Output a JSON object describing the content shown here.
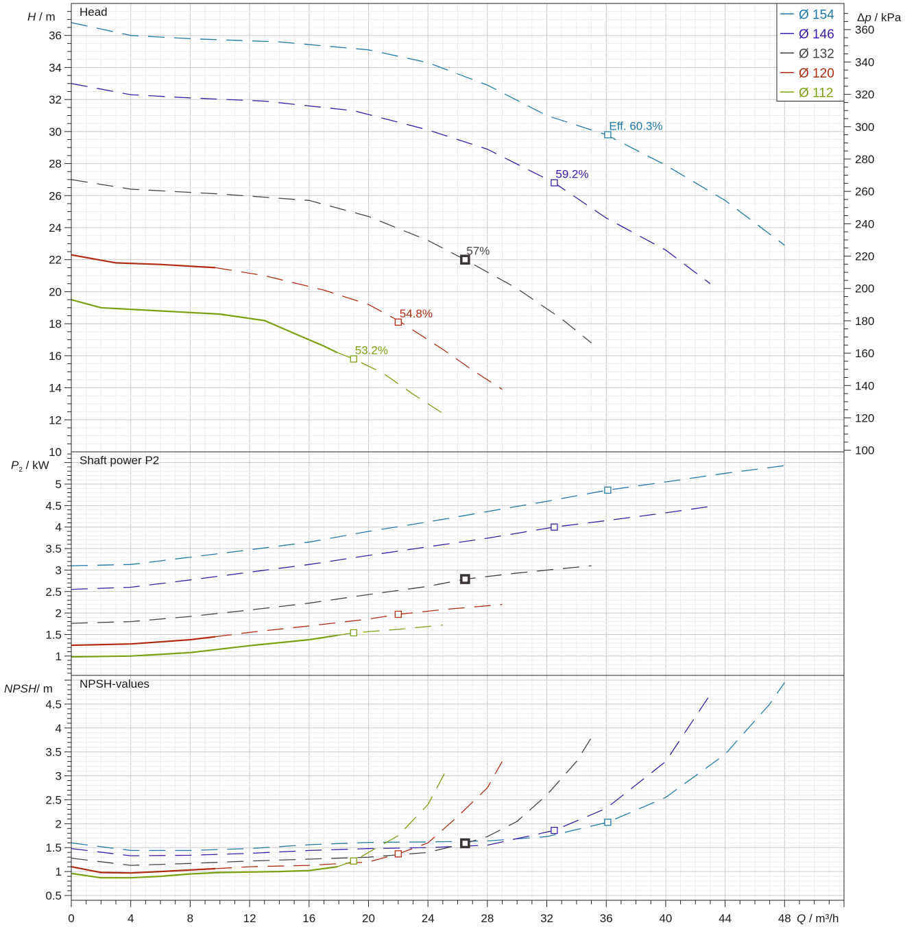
{
  "chart_data": [
    {
      "type": "line",
      "panel": "head",
      "title": "Head",
      "ylabel_main": "H",
      "ylabel_unit": "m",
      "ylim": [
        10,
        38
      ],
      "yticks": [
        10,
        12,
        14,
        16,
        18,
        20,
        22,
        24,
        26,
        28,
        30,
        32,
        34,
        36
      ],
      "secondary_ylabel_main": "Δp",
      "secondary_ylabel_unit": "kPa",
      "secondary_yticks": [
        100,
        120,
        140,
        160,
        180,
        200,
        220,
        240,
        260,
        280,
        300,
        320,
        340,
        360
      ],
      "xlim": [
        0,
        52
      ],
      "series": [
        {
          "name": "Ø 154",
          "color": "#1f78a8",
          "points": [
            [
              0,
              36.8
            ],
            [
              4,
              36.0
            ],
            [
              8,
              35.8
            ],
            [
              14,
              35.6
            ],
            [
              20,
              35.1
            ],
            [
              24,
              34.3
            ],
            [
              28,
              32.9
            ],
            [
              32,
              31.0
            ],
            [
              36,
              29.8
            ],
            [
              40,
              27.9
            ],
            [
              44,
              25.7
            ],
            [
              48,
              22.9
            ]
          ],
          "solid_until": null,
          "marker": {
            "x": 36.1,
            "y": 29.8,
            "label": "Eff.  60.3%"
          }
        },
        {
          "name": "Ø 146",
          "color": "#3a1aa8",
          "points": [
            [
              0,
              33.0
            ],
            [
              4,
              32.3
            ],
            [
              8,
              32.1
            ],
            [
              13,
              31.9
            ],
            [
              19,
              31.3
            ],
            [
              24,
              30.1
            ],
            [
              28,
              28.9
            ],
            [
              32.5,
              26.8
            ],
            [
              36,
              24.6
            ],
            [
              40,
              22.6
            ],
            [
              43,
              20.5
            ]
          ],
          "solid_until": null,
          "marker": {
            "x": 32.5,
            "y": 26.8,
            "label": "59.2%"
          }
        },
        {
          "name": "Ø 132",
          "color": "#444044",
          "points": [
            [
              0,
              27.0
            ],
            [
              4,
              26.4
            ],
            [
              10,
              26.1
            ],
            [
              16,
              25.7
            ],
            [
              20,
              24.7
            ],
            [
              24,
              23.2
            ],
            [
              26.5,
              22.0
            ],
            [
              30,
              20.2
            ],
            [
              33,
              18.3
            ],
            [
              35,
              16.8
            ]
          ],
          "solid_until": null,
          "marker": {
            "x": 26.5,
            "y": 22.0,
            "label": "57%",
            "bold": true
          }
        },
        {
          "name": "Ø 120",
          "color": "#b02a10",
          "points": [
            [
              0,
              22.3
            ],
            [
              3,
              21.8
            ],
            [
              6,
              21.7
            ],
            [
              9.7,
              21.5
            ],
            [
              13,
              21.0
            ],
            [
              17,
              20.1
            ],
            [
              20,
              19.2
            ],
            [
              22,
              18.2
            ],
            [
              25,
              16.4
            ],
            [
              27,
              15.1
            ],
            [
              29,
              13.9
            ]
          ],
          "solid_until": 9.7,
          "marker": {
            "x": 22,
            "y": 18.1,
            "label": "54.8%"
          }
        },
        {
          "name": "Ø 112",
          "color": "#7aa010",
          "points": [
            [
              0,
              19.5
            ],
            [
              2,
              19.0
            ],
            [
              6,
              18.8
            ],
            [
              10,
              18.6
            ],
            [
              13,
              18.2
            ],
            [
              15,
              17.4
            ],
            [
              17,
              16.6
            ],
            [
              17.9,
              16.2
            ],
            [
              19,
              15.8
            ],
            [
              21,
              14.9
            ],
            [
              23,
              13.6
            ],
            [
              25,
              12.4
            ]
          ],
          "solid_until": 17.9,
          "marker": {
            "x": 19,
            "y": 15.8,
            "label": "53.2%"
          }
        }
      ]
    },
    {
      "type": "line",
      "panel": "power",
      "title": "Shaft power P2",
      "ylabel_main": "P",
      "ylabel_sub": "2",
      "ylabel_unit": "kW",
      "ylim": [
        0.55,
        5.75
      ],
      "yticks": [
        1,
        1.5,
        2,
        2.5,
        3,
        3.5,
        4,
        4.5,
        5
      ],
      "ytick_labels": [
        "1",
        "1.5",
        "2",
        "2.5",
        "3",
        "3.5",
        "4",
        "4.5",
        "5"
      ],
      "xlim": [
        0,
        52
      ],
      "series": [
        {
          "name": "Ø 154",
          "points": [
            [
              0,
              3.1
            ],
            [
              4,
              3.13
            ],
            [
              8,
              3.3
            ],
            [
              12,
              3.47
            ],
            [
              16,
              3.65
            ],
            [
              20,
              3.9
            ],
            [
              24,
              4.12
            ],
            [
              28,
              4.36
            ],
            [
              32,
              4.6
            ],
            [
              36.1,
              4.86
            ],
            [
              40,
              5.05
            ],
            [
              44,
              5.25
            ],
            [
              48,
              5.43
            ]
          ],
          "solid_until": null,
          "marker": {
            "x": 36.1,
            "y": 4.86
          }
        },
        {
          "name": "Ø 146",
          "points": [
            [
              0,
              2.55
            ],
            [
              4,
              2.6
            ],
            [
              8,
              2.77
            ],
            [
              12,
              2.95
            ],
            [
              16,
              3.13
            ],
            [
              20,
              3.34
            ],
            [
              24,
              3.54
            ],
            [
              28,
              3.74
            ],
            [
              32.5,
              4.0
            ],
            [
              36,
              4.15
            ],
            [
              40,
              4.33
            ],
            [
              43,
              4.48
            ]
          ],
          "solid_until": null,
          "marker": {
            "x": 32.5,
            "y": 4.0
          }
        },
        {
          "name": "Ø 132",
          "points": [
            [
              0,
              1.76
            ],
            [
              4,
              1.8
            ],
            [
              8,
              1.92
            ],
            [
              12,
              2.07
            ],
            [
              16,
              2.23
            ],
            [
              20,
              2.43
            ],
            [
              24,
              2.62
            ],
            [
              26.5,
              2.79
            ],
            [
              30,
              2.93
            ],
            [
              35,
              3.1
            ]
          ],
          "solid_until": null,
          "marker": {
            "x": 26.5,
            "y": 2.79,
            "bold": true
          }
        },
        {
          "name": "Ø 120",
          "points": [
            [
              0,
              1.25
            ],
            [
              4,
              1.28
            ],
            [
              8,
              1.38
            ],
            [
              9.7,
              1.45
            ],
            [
              12,
              1.55
            ],
            [
              16,
              1.7
            ],
            [
              20,
              1.86
            ],
            [
              22,
              1.97
            ],
            [
              25,
              2.08
            ],
            [
              29,
              2.2
            ]
          ],
          "solid_until": 9.7,
          "marker": {
            "x": 22,
            "y": 1.97
          }
        },
        {
          "name": "Ø 112",
          "points": [
            [
              0,
              0.98
            ],
            [
              4,
              1.0
            ],
            [
              8,
              1.08
            ],
            [
              12,
              1.24
            ],
            [
              16,
              1.38
            ],
            [
              17.9,
              1.48
            ],
            [
              19,
              1.54
            ],
            [
              22,
              1.62
            ],
            [
              25,
              1.72
            ]
          ],
          "solid_until": 17.9,
          "marker": {
            "x": 19,
            "y": 1.54
          }
        }
      ]
    },
    {
      "type": "line",
      "panel": "npsh",
      "title": "NPSH-values",
      "ylabel_main": "NPSH",
      "ylabel_unit": "m",
      "ylim": [
        0.4,
        5.1
      ],
      "yticks": [
        0.5,
        1,
        1.5,
        2,
        2.5,
        3,
        3.5,
        4,
        4.5
      ],
      "ytick_labels": [
        "0.5",
        "1",
        "1.5",
        "2",
        "2.5",
        "3",
        "3.5",
        "4",
        "4.5"
      ],
      "xlabel_main": "Q",
      "xlabel_unit": "m³/h",
      "xlim": [
        0,
        52
      ],
      "xticks": [
        0,
        4,
        8,
        12,
        16,
        20,
        24,
        28,
        32,
        36,
        40,
        44,
        48
      ],
      "xtick_labels": [
        "0",
        "4",
        "8",
        "12",
        "16",
        "20",
        "24",
        "28",
        "32",
        "36",
        "40",
        "44",
        "48"
      ],
      "series": [
        {
          "name": "Ø 154",
          "points": [
            [
              0,
              1.6
            ],
            [
              4,
              1.44
            ],
            [
              8,
              1.44
            ],
            [
              12,
              1.48
            ],
            [
              16,
              1.56
            ],
            [
              20,
              1.61
            ],
            [
              24,
              1.62
            ],
            [
              28,
              1.64
            ],
            [
              32,
              1.73
            ],
            [
              36.1,
              2.03
            ],
            [
              40,
              2.55
            ],
            [
              44,
              3.45
            ],
            [
              47,
              4.5
            ],
            [
              48,
              4.95
            ]
          ],
          "solid_until": null,
          "marker": {
            "x": 36.1,
            "y": 2.03
          }
        },
        {
          "name": "Ø 146",
          "points": [
            [
              0,
              1.48
            ],
            [
              4,
              1.33
            ],
            [
              8,
              1.34
            ],
            [
              12,
              1.38
            ],
            [
              16,
              1.44
            ],
            [
              20,
              1.48
            ],
            [
              24,
              1.5
            ],
            [
              28,
              1.55
            ],
            [
              32.5,
              1.86
            ],
            [
              36,
              2.32
            ],
            [
              40,
              3.3
            ],
            [
              43,
              4.7
            ]
          ],
          "solid_until": null,
          "marker": {
            "x": 32.5,
            "y": 1.86
          }
        },
        {
          "name": "Ø 132",
          "points": [
            [
              0,
              1.28
            ],
            [
              4,
              1.13
            ],
            [
              8,
              1.17
            ],
            [
              12,
              1.22
            ],
            [
              16,
              1.26
            ],
            [
              20,
              1.3
            ],
            [
              24,
              1.4
            ],
            [
              26.5,
              1.59
            ],
            [
              28,
              1.73
            ],
            [
              30,
              2.05
            ],
            [
              32,
              2.6
            ],
            [
              34,
              3.3
            ],
            [
              35,
              3.8
            ]
          ],
          "solid_until": null,
          "marker": {
            "x": 26.5,
            "y": 1.59,
            "bold": true
          }
        },
        {
          "name": "Ø 120",
          "points": [
            [
              0,
              1.1
            ],
            [
              2,
              0.98
            ],
            [
              4,
              0.97
            ],
            [
              6,
              1.0
            ],
            [
              9.7,
              1.06
            ],
            [
              12,
              1.1
            ],
            [
              16,
              1.13
            ],
            [
              20,
              1.2
            ],
            [
              22,
              1.37
            ],
            [
              24,
              1.6
            ],
            [
              26,
              2.15
            ],
            [
              28,
              2.75
            ],
            [
              29,
              3.3
            ]
          ],
          "solid_until": 9.7,
          "marker": {
            "x": 22,
            "y": 1.37
          }
        },
        {
          "name": "Ø 112",
          "points": [
            [
              0,
              0.96
            ],
            [
              2,
              0.87
            ],
            [
              4,
              0.87
            ],
            [
              6,
              0.9
            ],
            [
              8,
              0.95
            ],
            [
              10,
              0.98
            ],
            [
              14,
              1.0
            ],
            [
              16,
              1.02
            ],
            [
              17.9,
              1.1
            ],
            [
              19,
              1.22
            ],
            [
              20,
              1.4
            ],
            [
              22,
              1.75
            ],
            [
              24,
              2.4
            ],
            [
              25.2,
              3.1
            ]
          ],
          "solid_until": 17.9,
          "marker": {
            "x": 19,
            "y": 1.22
          }
        }
      ]
    }
  ],
  "legend": [
    {
      "label": "Ø 154",
      "color": "#1f78a8"
    },
    {
      "label": "Ø 146",
      "color": "#3a1aa8"
    },
    {
      "label": "Ø 132",
      "color": "#444044"
    },
    {
      "label": "Ø 120",
      "color": "#b02a10"
    },
    {
      "label": "Ø 112",
      "color": "#7aa010"
    }
  ],
  "legend_position": "top-right"
}
